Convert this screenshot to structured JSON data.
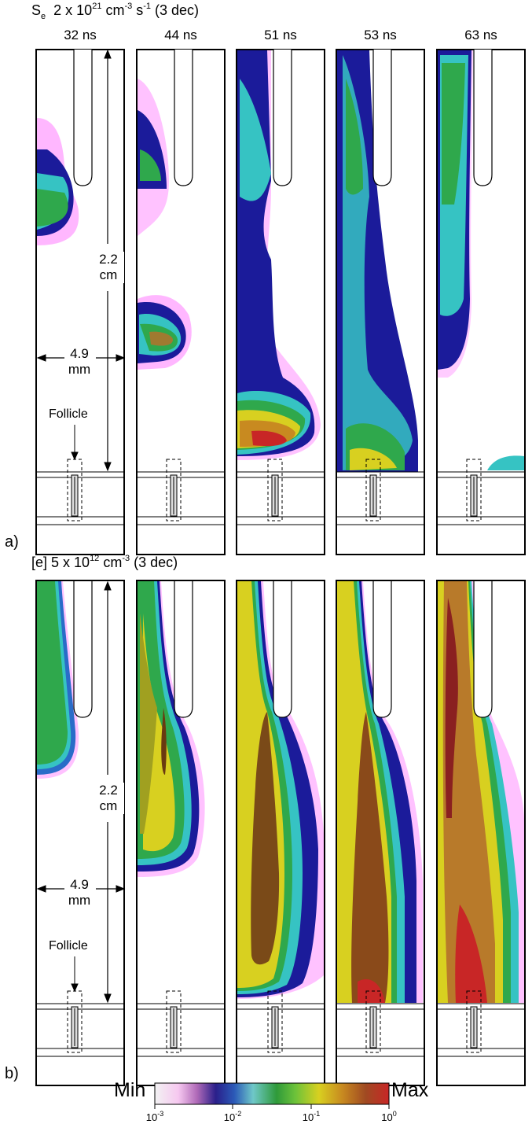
{
  "panel_a": {
    "title_quantity": "S",
    "title_sub": "e",
    "title_value": "2 x 10",
    "title_exp1": "21",
    "title_unit1": " cm",
    "title_exp2": "-3",
    "title_unit2": " s",
    "title_exp3": "-1",
    "title_suffix": " (3 dec)",
    "label": "a)"
  },
  "panel_b": {
    "title_quantity": "[e] 5 x 10",
    "title_exp1": "12",
    "title_unit1": " cm",
    "title_exp2": "-3",
    "title_suffix": " (3 dec)",
    "label": "b)"
  },
  "times": [
    "32 ns",
    "44 ns",
    "51 ns",
    "53 ns",
    "63 ns"
  ],
  "annotations": {
    "length_value": "2.2",
    "length_unit": "cm",
    "width_value": "4.9",
    "width_unit": "mm",
    "follicle": "Follicle"
  },
  "colorbar": {
    "min_label": "Min",
    "max_label": "Max",
    "tick_base": "10",
    "tick_exponents": [
      "-3",
      "-2",
      "-1",
      "0"
    ],
    "colors": [
      "#ffffff",
      "#ff66ff",
      "#8a3fb8",
      "#1b1b9a",
      "#2a6cc8",
      "#36c3c3",
      "#2fa84c",
      "#6fd13a",
      "#d8d820",
      "#c8a010",
      "#8a4a1a",
      "#c82020"
    ]
  }
}
